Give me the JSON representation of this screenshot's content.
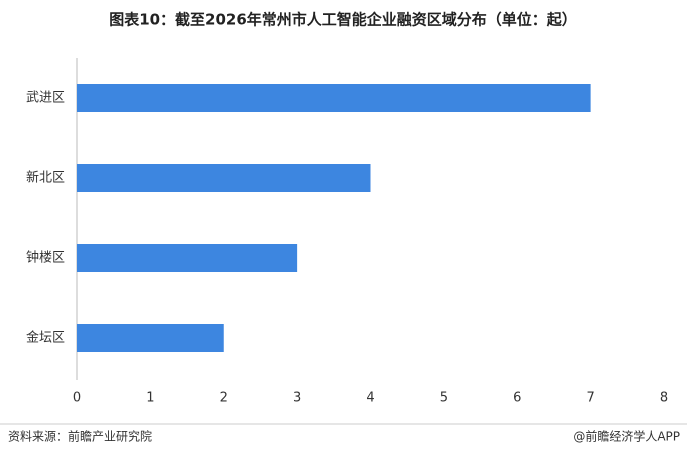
{
  "chart_data": {
    "type": "bar",
    "orientation": "horizontal",
    "title": "图表10：截至2026年常州市人工智能企业融资区域分布（单位：起）",
    "categories": [
      "武进区",
      "新北区",
      "钟楼区",
      "金坛区"
    ],
    "values": [
      7,
      4,
      3,
      2
    ],
    "color": "#3d86e0",
    "xlim": [
      0,
      8
    ],
    "xticks": [
      0,
      1,
      2,
      3,
      4,
      5,
      6,
      7,
      8
    ],
    "grid": false,
    "source": "资料来源：前瞻产业研究院",
    "credit": "@前瞻经济学人APP"
  }
}
